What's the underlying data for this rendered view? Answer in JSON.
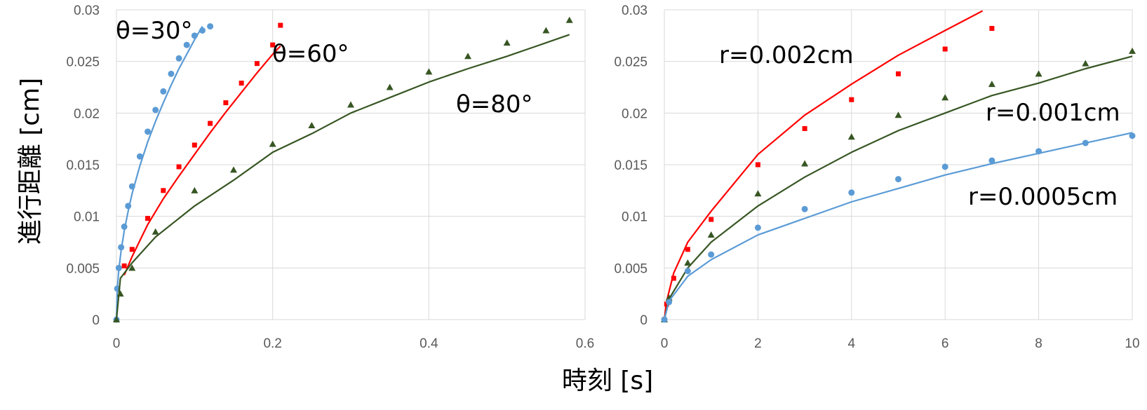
{
  "shared_xlabel": "時刻 [s]",
  "shared_ylabel": "進行距離 [cm]",
  "chart_data": [
    {
      "type": "line",
      "xlim": [
        0,
        0.6
      ],
      "ylim": [
        0,
        0.03
      ],
      "xticks": [
        "0",
        "0.2",
        "0.4",
        "0.6"
      ],
      "yticks": [
        "0",
        "0.005",
        "0.01",
        "0.015",
        "0.02",
        "0.025",
        "0.03"
      ],
      "grid": true,
      "annotations": [
        "θ=30°",
        "θ=60°",
        "θ=80°"
      ],
      "series": [
        {
          "color": "#5b9bd5",
          "style": "line",
          "points": [
            [
              0,
              0
            ],
            [
              0.001,
              0.0029
            ],
            [
              0.003,
              0.0048
            ],
            [
              0.006,
              0.0067
            ],
            [
              0.01,
              0.0086
            ],
            [
              0.015,
              0.0105
            ],
            [
              0.02,
              0.0122
            ],
            [
              0.03,
              0.0149
            ],
            [
              0.04,
              0.0172
            ],
            [
              0.05,
              0.0192
            ],
            [
              0.06,
              0.021
            ],
            [
              0.07,
              0.0227
            ],
            [
              0.08,
              0.0243
            ],
            [
              0.09,
              0.0257
            ],
            [
              0.1,
              0.0271
            ],
            [
              0.11,
              0.0284
            ]
          ]
        },
        {
          "color": "#5b9bd5",
          "style": "markers-circle",
          "points": [
            [
              0,
              0
            ],
            [
              0.001,
              0.003
            ],
            [
              0.003,
              0.005
            ],
            [
              0.006,
              0.007
            ],
            [
              0.01,
              0.009
            ],
            [
              0.015,
              0.011
            ],
            [
              0.02,
              0.0129
            ],
            [
              0.03,
              0.0158
            ],
            [
              0.04,
              0.0182
            ],
            [
              0.05,
              0.0203
            ],
            [
              0.06,
              0.0221
            ],
            [
              0.07,
              0.0238
            ],
            [
              0.08,
              0.0253
            ],
            [
              0.09,
              0.0266
            ],
            [
              0.1,
              0.0275
            ],
            [
              0.11,
              0.028
            ],
            [
              0.12,
              0.0284
            ]
          ]
        },
        {
          "color": "#ff0000",
          "style": "line",
          "points": [
            [
              0.01,
              0.0043
            ],
            [
              0.02,
              0.0061
            ],
            [
              0.04,
              0.0092
            ],
            [
              0.06,
              0.0117
            ],
            [
              0.08,
              0.0139
            ],
            [
              0.1,
              0.016
            ],
            [
              0.12,
              0.0181
            ],
            [
              0.14,
              0.0201
            ],
            [
              0.16,
              0.022
            ],
            [
              0.18,
              0.0239
            ],
            [
              0.2,
              0.0257
            ],
            [
              0.21,
              0.0265
            ]
          ]
        },
        {
          "color": "#ff0000",
          "style": "markers-square",
          "points": [
            [
              0.01,
              0.0052
            ],
            [
              0.02,
              0.0068
            ],
            [
              0.04,
              0.0098
            ],
            [
              0.06,
              0.0125
            ],
            [
              0.08,
              0.0148
            ],
            [
              0.1,
              0.0169
            ],
            [
              0.12,
              0.019
            ],
            [
              0.14,
              0.021
            ],
            [
              0.16,
              0.0229
            ],
            [
              0.18,
              0.0248
            ],
            [
              0.2,
              0.0266
            ],
            [
              0.21,
              0.0285
            ]
          ]
        },
        {
          "color": "#375623",
          "style": "line",
          "points": [
            [
              0,
              0
            ],
            [
              0.005,
              0.004
            ],
            [
              0.02,
              0.0055
            ],
            [
              0.05,
              0.008
            ],
            [
              0.1,
              0.011
            ],
            [
              0.15,
              0.0135
            ],
            [
              0.2,
              0.0162
            ],
            [
              0.25,
              0.018
            ],
            [
              0.3,
              0.02
            ],
            [
              0.35,
              0.0215
            ],
            [
              0.4,
              0.023
            ],
            [
              0.45,
              0.0243
            ],
            [
              0.5,
              0.0255
            ],
            [
              0.55,
              0.0268
            ],
            [
              0.58,
              0.0276
            ]
          ]
        },
        {
          "color": "#375623",
          "style": "markers-triangle",
          "points": [
            [
              0,
              0
            ],
            [
              0.005,
              0.0025
            ],
            [
              0.02,
              0.005
            ],
            [
              0.05,
              0.0085
            ],
            [
              0.1,
              0.0125
            ],
            [
              0.15,
              0.0145
            ],
            [
              0.2,
              0.017
            ],
            [
              0.25,
              0.0188
            ],
            [
              0.3,
              0.0208
            ],
            [
              0.35,
              0.0225
            ],
            [
              0.4,
              0.024
            ],
            [
              0.45,
              0.0255
            ],
            [
              0.5,
              0.0268
            ],
            [
              0.55,
              0.028
            ],
            [
              0.58,
              0.029
            ]
          ]
        }
      ]
    },
    {
      "type": "line",
      "xlim": [
        0,
        10
      ],
      "ylim": [
        0,
        0.03
      ],
      "xticks": [
        "0",
        "2",
        "4",
        "6",
        "8",
        "10"
      ],
      "yticks": [
        "0",
        "0.005",
        "0.01",
        "0.015",
        "0.02",
        "0.025",
        "0.03"
      ],
      "grid": true,
      "annotations": [
        "r=0.002cm",
        "r=0.001cm",
        "r=0.0005cm"
      ],
      "series": [
        {
          "color": "#ff0000",
          "style": "line",
          "points": [
            [
              0,
              0
            ],
            [
              0.05,
              0.0018
            ],
            [
              0.2,
              0.0045
            ],
            [
              0.5,
              0.0075
            ],
            [
              1,
              0.0105
            ],
            [
              2,
              0.016
            ],
            [
              3,
              0.0198
            ],
            [
              4,
              0.0228
            ],
            [
              5,
              0.0256
            ],
            [
              6,
              0.028
            ],
            [
              6.8,
              0.0299
            ]
          ]
        },
        {
          "color": "#ff0000",
          "style": "markers-square",
          "points": [
            [
              0,
              0
            ],
            [
              0.05,
              0.0015
            ],
            [
              0.2,
              0.004
            ],
            [
              0.5,
              0.0068
            ],
            [
              1,
              0.0097
            ],
            [
              2,
              0.015
            ],
            [
              3,
              0.0185
            ],
            [
              4,
              0.0213
            ],
            [
              5,
              0.0238
            ],
            [
              6,
              0.0262
            ],
            [
              7,
              0.0282
            ]
          ]
        },
        {
          "color": "#375623",
          "style": "line",
          "points": [
            [
              0,
              0
            ],
            [
              0.1,
              0.002
            ],
            [
              0.5,
              0.005
            ],
            [
              1,
              0.0075
            ],
            [
              2,
              0.011
            ],
            [
              3,
              0.0138
            ],
            [
              4,
              0.0162
            ],
            [
              5,
              0.0183
            ],
            [
              6,
              0.02
            ],
            [
              7,
              0.0217
            ],
            [
              8,
              0.0229
            ],
            [
              9,
              0.0243
            ],
            [
              10,
              0.0255
            ]
          ]
        },
        {
          "color": "#375623",
          "style": "markers-triangle",
          "points": [
            [
              0,
              0
            ],
            [
              0.1,
              0.0021
            ],
            [
              0.5,
              0.0055
            ],
            [
              1,
              0.0082
            ],
            [
              2,
              0.0122
            ],
            [
              3,
              0.0151
            ],
            [
              4,
              0.0177
            ],
            [
              5,
              0.0198
            ],
            [
              6,
              0.0215
            ],
            [
              7,
              0.0228
            ],
            [
              8,
              0.0238
            ],
            [
              9,
              0.0248
            ],
            [
              10,
              0.026
            ]
          ]
        },
        {
          "color": "#5b9bd5",
          "style": "line",
          "points": [
            [
              0,
              0
            ],
            [
              0.1,
              0.0018
            ],
            [
              0.5,
              0.0042
            ],
            [
              1,
              0.0058
            ],
            [
              2,
              0.0082
            ],
            [
              3,
              0.0098
            ],
            [
              4,
              0.0114
            ],
            [
              5,
              0.0127
            ],
            [
              6,
              0.014
            ],
            [
              7,
              0.0151
            ],
            [
              8,
              0.0161
            ],
            [
              9,
              0.0171
            ],
            [
              10,
              0.0181
            ]
          ]
        },
        {
          "color": "#5b9bd5",
          "style": "markers-circle",
          "points": [
            [
              0,
              0
            ],
            [
              0.1,
              0.0017
            ],
            [
              0.5,
              0.0047
            ],
            [
              1,
              0.0063
            ],
            [
              2,
              0.0089
            ],
            [
              3,
              0.0107
            ],
            [
              4,
              0.0123
            ],
            [
              5,
              0.0136
            ],
            [
              6,
              0.0148
            ],
            [
              7,
              0.0154
            ],
            [
              8,
              0.0163
            ],
            [
              9,
              0.0171
            ],
            [
              10,
              0.0178
            ]
          ]
        }
      ]
    }
  ]
}
